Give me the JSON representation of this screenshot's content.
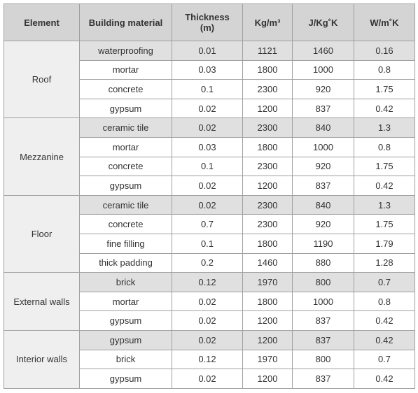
{
  "table": {
    "header": [
      "Element",
      "Building material",
      "Thickness\n(m)",
      "Kg/m³",
      "J/Kg˚K",
      "W/m˚K"
    ],
    "groups": [
      {
        "element": "Roof",
        "rows": [
          [
            "waterproofing",
            0.01,
            1121,
            1460,
            0.16
          ],
          [
            "mortar",
            0.03,
            1800,
            1000,
            0.8
          ],
          [
            "concrete",
            0.1,
            2300,
            920,
            1.75
          ],
          [
            "gypsum",
            0.02,
            1200,
            837,
            0.42
          ]
        ]
      },
      {
        "element": "Mezzanine",
        "rows": [
          [
            "ceramic tile",
            0.02,
            2300,
            840,
            1.3
          ],
          [
            "mortar",
            0.03,
            1800,
            1000,
            0.8
          ],
          [
            "concrete",
            0.1,
            2300,
            920,
            1.75
          ],
          [
            "gypsum",
            0.02,
            1200,
            837,
            0.42
          ]
        ]
      },
      {
        "element": "Floor",
        "rows": [
          [
            "ceramic tile",
            0.02,
            2300,
            840,
            1.3
          ],
          [
            "concrete",
            0.7,
            2300,
            920,
            1.75
          ],
          [
            "fine filling",
            0.1,
            1800,
            1190,
            1.79
          ],
          [
            "thick padding",
            0.2,
            1460,
            880,
            1.28
          ]
        ]
      },
      {
        "element": "External walls",
        "rows": [
          [
            "brick",
            0.12,
            1970,
            800,
            0.7
          ],
          [
            "mortar",
            0.02,
            1800,
            1000,
            0.8
          ],
          [
            "gypsum",
            0.02,
            1200,
            837,
            0.42
          ]
        ]
      },
      {
        "element": "Interior walls",
        "rows": [
          [
            "gypsum",
            0.02,
            1200,
            837,
            0.42
          ],
          [
            "brick",
            0.12,
            1970,
            800,
            0.7
          ],
          [
            "gypsum",
            0.02,
            1200,
            837,
            0.42
          ]
        ]
      }
    ]
  }
}
